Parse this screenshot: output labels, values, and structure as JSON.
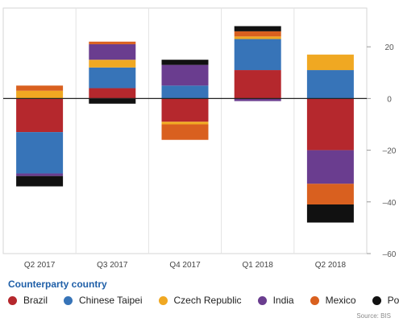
{
  "chart_data": {
    "type": "bar",
    "stacked": true,
    "categories": [
      "Q2 2017",
      "Q3 2017",
      "Q4 2017",
      "Q1 2018",
      "Q2 2018"
    ],
    "series": [
      {
        "name": "Brazil",
        "color": "#b5282d",
        "values": [
          -13,
          4,
          -9,
          11,
          -20
        ]
      },
      {
        "name": "Chinese Taipei",
        "color": "#3774b8",
        "values": [
          -16,
          8,
          5,
          12,
          11
        ]
      },
      {
        "name": "Czech Republic",
        "color": "#f0a822",
        "values": [
          3,
          3,
          -1,
          1,
          6
        ]
      },
      {
        "name": "India",
        "color": "#6a3d8f",
        "values": [
          -1,
          6,
          8,
          -1,
          -13
        ]
      },
      {
        "name": "Mexico",
        "color": "#d9601f",
        "values": [
          2,
          1,
          -6,
          2,
          -8
        ]
      },
      {
        "name": "Poland",
        "color": "#111111",
        "values": [
          -4,
          -2,
          2,
          2,
          -7
        ]
      }
    ],
    "ylim": [
      -60,
      35
    ],
    "yticks": [
      20,
      0,
      -20,
      -40,
      -60
    ],
    "ytick_labels": [
      "20",
      "0",
      "–20",
      "–40",
      "–60"
    ],
    "y_axis_position": "right",
    "grid": true,
    "legend_title": "Counterparty country",
    "legend_placement": "bottom",
    "source": "Source: BIS"
  }
}
